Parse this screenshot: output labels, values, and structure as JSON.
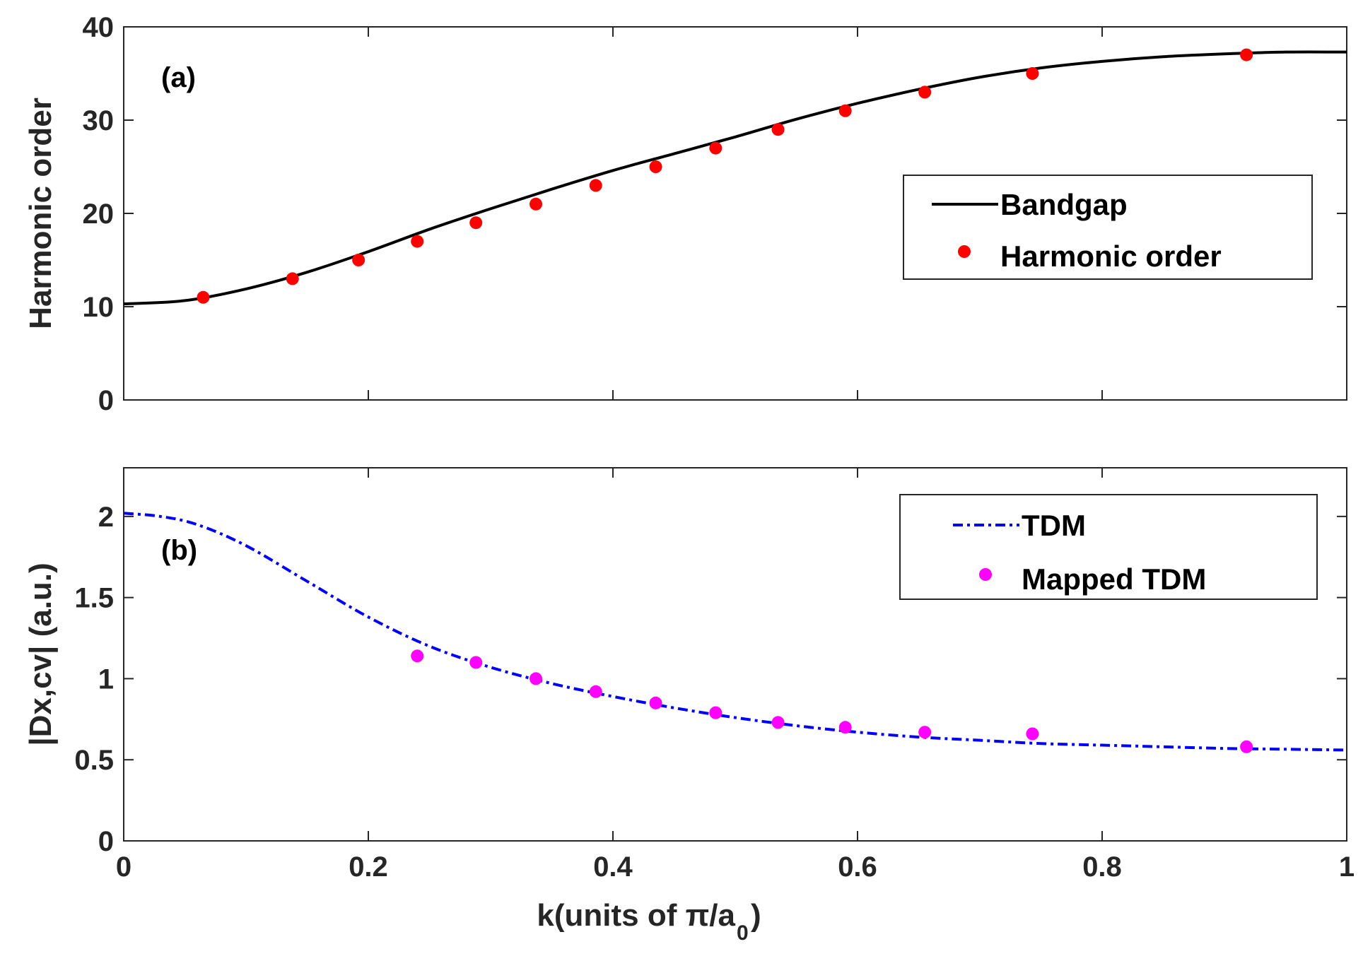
{
  "chart_data": [
    {
      "panel": "(a)",
      "type": "line",
      "ylabel": "Harmonic order",
      "xlabel": "",
      "xlim": [
        0,
        1
      ],
      "ylim": [
        0,
        40
      ],
      "xticks": [
        "0",
        "0.2",
        "0.4",
        "0.6",
        "0.8",
        "1"
      ],
      "yticks": [
        "0",
        "10",
        "20",
        "30",
        "40"
      ],
      "legend_position": "right",
      "series": [
        {
          "name": "Bandgap",
          "style": "solid",
          "color": "#000000",
          "x": [
            0,
            0.05,
            0.1,
            0.15,
            0.2,
            0.25,
            0.3,
            0.35,
            0.4,
            0.45,
            0.5,
            0.55,
            0.6,
            0.65,
            0.7,
            0.75,
            0.8,
            0.85,
            0.9,
            0.95,
            1.0
          ],
          "y": [
            10.3,
            10.65,
            11.9,
            13.7,
            15.9,
            18.3,
            20.5,
            22.6,
            24.6,
            26.4,
            28.2,
            30.1,
            31.8,
            33.3,
            34.6,
            35.6,
            36.3,
            36.8,
            37.1,
            37.3,
            37.3
          ]
        },
        {
          "name": "Harmonic order",
          "style": "markers",
          "color": "#ff0000",
          "x": [
            0.065,
            0.138,
            0.192,
            0.24,
            0.288,
            0.337,
            0.386,
            0.435,
            0.484,
            0.535,
            0.59,
            0.655,
            0.743,
            0.918
          ],
          "y": [
            11,
            13,
            15,
            17,
            19,
            21,
            23,
            25,
            27,
            29,
            31,
            33,
            35,
            37
          ]
        }
      ]
    },
    {
      "panel": "(b)",
      "type": "line",
      "ylabel": "|Dx,cv| (a.u.)",
      "xlabel_main": "k(units of π/a",
      "xlabel_sub": "0",
      "xlabel_end": ")",
      "xlim": [
        0,
        1
      ],
      "ylim": [
        0,
        2.3
      ],
      "xticks": [
        "0",
        "0.2",
        "0.4",
        "0.6",
        "0.8",
        "1"
      ],
      "yticks": [
        "0",
        "0.5",
        "1",
        "1.5",
        "2"
      ],
      "legend_position": "top-right",
      "series": [
        {
          "name": "TDM",
          "style": "dashdot",
          "color": "#0000ff",
          "x": [
            0,
            0.03,
            0.06,
            0.1,
            0.15,
            0.2,
            0.25,
            0.3,
            0.35,
            0.4,
            0.45,
            0.5,
            0.55,
            0.6,
            0.65,
            0.7,
            0.75,
            0.8,
            0.85,
            0.9,
            0.95,
            1.0
          ],
          "y": [
            2.02,
            2.0,
            1.95,
            1.82,
            1.6,
            1.38,
            1.2,
            1.07,
            0.97,
            0.89,
            0.82,
            0.76,
            0.71,
            0.67,
            0.64,
            0.62,
            0.6,
            0.59,
            0.58,
            0.57,
            0.565,
            0.56
          ]
        },
        {
          "name": "Mapped TDM",
          "style": "markers",
          "color": "#ff00ff",
          "x": [
            0.24,
            0.288,
            0.337,
            0.386,
            0.435,
            0.484,
            0.535,
            0.59,
            0.655,
            0.743,
            0.918
          ],
          "y": [
            1.14,
            1.1,
            1.0,
            0.92,
            0.85,
            0.79,
            0.73,
            0.7,
            0.67,
            0.66,
            0.58
          ]
        }
      ]
    }
  ]
}
